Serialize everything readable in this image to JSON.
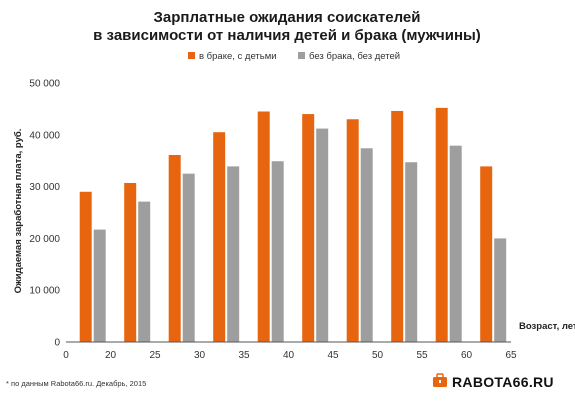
{
  "chart_data": {
    "type": "bar",
    "title_lines": [
      "Зарплатные ожидания соискателей",
      "в зависимости от наличия детей и брака (мужчины)"
    ],
    "xlabel": "Возраст, лет",
    "ylabel": "Ожидаемая заработная плата, руб.",
    "x_ticks": [
      "0",
      "20",
      "25",
      "30",
      "35",
      "40",
      "45",
      "50",
      "55",
      "60",
      "65"
    ],
    "y_ticks": [
      "0",
      "10 000",
      "20 000",
      "30 000",
      "40 000",
      "50 000"
    ],
    "ylim": [
      0,
      50000
    ],
    "grid": false,
    "legend_position": "top-center",
    "categories": [
      "18",
      "23",
      "28",
      "33",
      "38",
      "43",
      "48",
      "53",
      "58",
      "63"
    ],
    "series": [
      {
        "name": "в браке, с детьми",
        "color": "#e8650f",
        "values": [
          29000,
          30700,
          36100,
          40500,
          44500,
          44000,
          43000,
          44600,
          45200,
          33900
        ]
      },
      {
        "name": "без брака, без детей",
        "color": "#9e9e9e",
        "values": [
          21700,
          27100,
          32500,
          33900,
          34900,
          41200,
          37400,
          34700,
          37900,
          20000
        ]
      }
    ]
  },
  "footnote": "* по данным Rabota66.ru. Декабрь, 2015",
  "brand": {
    "name": "RABOTA66.RU",
    "icon": "briefcase-logo-icon"
  }
}
